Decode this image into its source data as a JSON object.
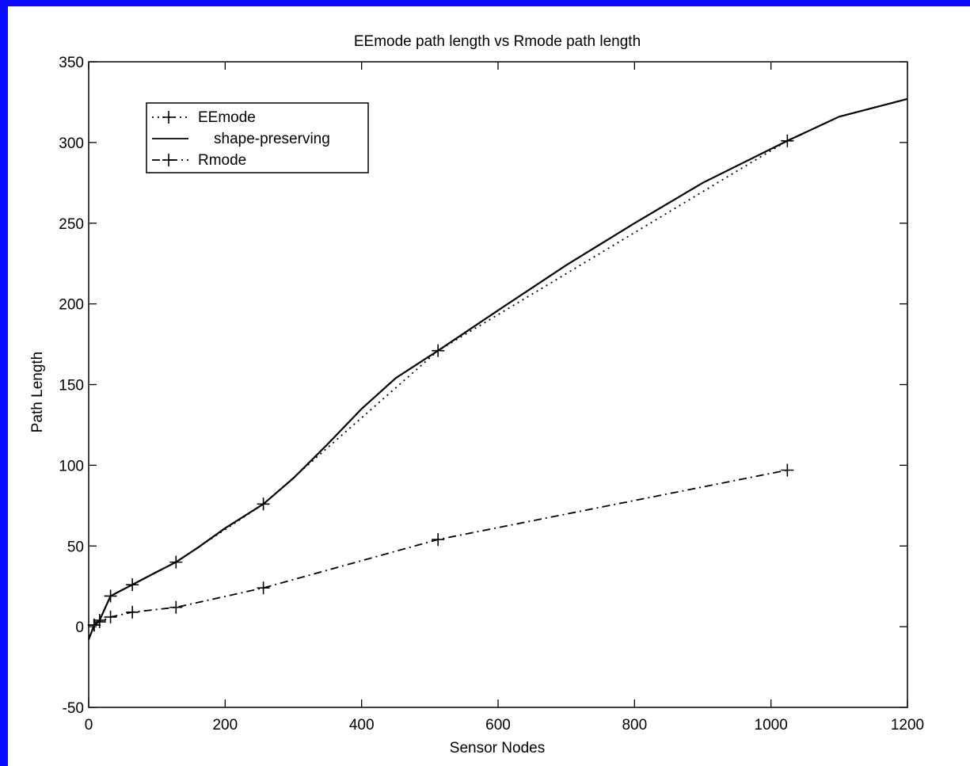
{
  "colors": {
    "frame": "#0a0aff",
    "background": "#ffffff",
    "ink": "#000000"
  },
  "chart_data": {
    "type": "line",
    "title": "EEmode path length vs Rmode path length",
    "xlabel": "Sensor Nodes",
    "ylabel": "Path Length",
    "xlim": [
      0,
      1200
    ],
    "ylim": [
      -50,
      350
    ],
    "xticks": [
      0,
      200,
      400,
      600,
      800,
      1000,
      1200
    ],
    "yticks": [
      -50,
      0,
      50,
      100,
      150,
      200,
      250,
      300,
      350
    ],
    "grid": false,
    "legend_position": "top-left",
    "series": [
      {
        "name": "EEmode",
        "style": "dotted-plus",
        "x": [
          8,
          16,
          32,
          64,
          128,
          256,
          512,
          1024
        ],
        "y": [
          1,
          4,
          19,
          26,
          40,
          76,
          171,
          301
        ]
      },
      {
        "name": "shape-preserving",
        "style": "solid",
        "x": [
          0,
          8,
          16,
          32,
          64,
          100,
          128,
          160,
          200,
          256,
          300,
          350,
          400,
          450,
          512,
          600,
          700,
          800,
          900,
          1024,
          1100,
          1200
        ],
        "y": [
          -8,
          1,
          4,
          19,
          26,
          34,
          40,
          49,
          61,
          76,
          92,
          113,
          135,
          154,
          171,
          196,
          224,
          250,
          275,
          301,
          316,
          327
        ]
      },
      {
        "name": "Rmode",
        "style": "dashdot-plus",
        "x": [
          8,
          16,
          32,
          64,
          128,
          256,
          512,
          1024
        ],
        "y": [
          1,
          3,
          6,
          9,
          12,
          24,
          54,
          97
        ]
      }
    ]
  }
}
